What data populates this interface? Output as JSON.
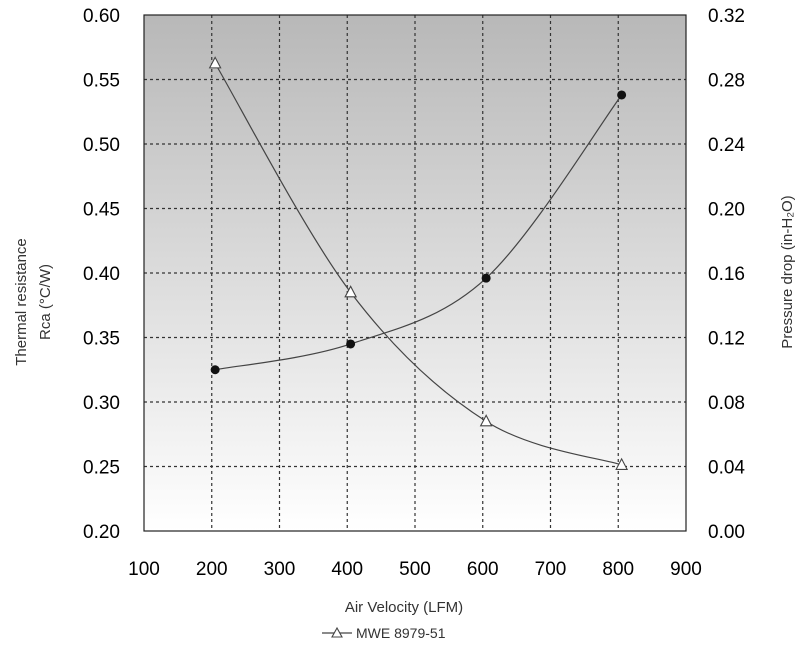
{
  "chart_data": {
    "type": "line",
    "x_axis": {
      "label": "Air Velocity (LFM)",
      "range": [
        100,
        900
      ],
      "ticks": [
        "100",
        "200",
        "300",
        "400",
        "500",
        "600",
        "700",
        "800",
        "900"
      ]
    },
    "y_left": {
      "label_line1": "Thermal resistance",
      "label_line2": "Rca (°C/W)",
      "range": [
        0.2,
        0.6
      ],
      "ticks": [
        "0.20",
        "0.25",
        "0.30",
        "0.35",
        "0.40",
        "0.45",
        "0.50",
        "0.55",
        "0.60"
      ]
    },
    "y_right": {
      "label": "Pressure drop (in-H₂O)",
      "range": [
        0.0,
        0.32
      ],
      "ticks": [
        "0.00",
        "0.04",
        "0.08",
        "0.12",
        "0.16",
        "0.20",
        "0.24",
        "0.28",
        "0.32"
      ]
    },
    "series": [
      {
        "axis": "left",
        "marker": "filled-circle",
        "x": [
          205,
          405,
          605,
          805
        ],
        "y": [
          0.325,
          0.345,
          0.396,
          0.538
        ]
      },
      {
        "axis": "right",
        "marker": "open-triangle",
        "x": [
          205,
          405,
          605,
          805
        ],
        "y": [
          0.29,
          0.148,
          0.068,
          0.041
        ]
      }
    ],
    "grid": true,
    "legend": {
      "position": "bottom-center",
      "entries": [
        "MWE 8979-51"
      ]
    },
    "colors": {
      "plot_bg_top": "#b8b8b8",
      "plot_bg_bottom": "#ffffff",
      "line": "#444444",
      "grid": "#333333"
    }
  }
}
